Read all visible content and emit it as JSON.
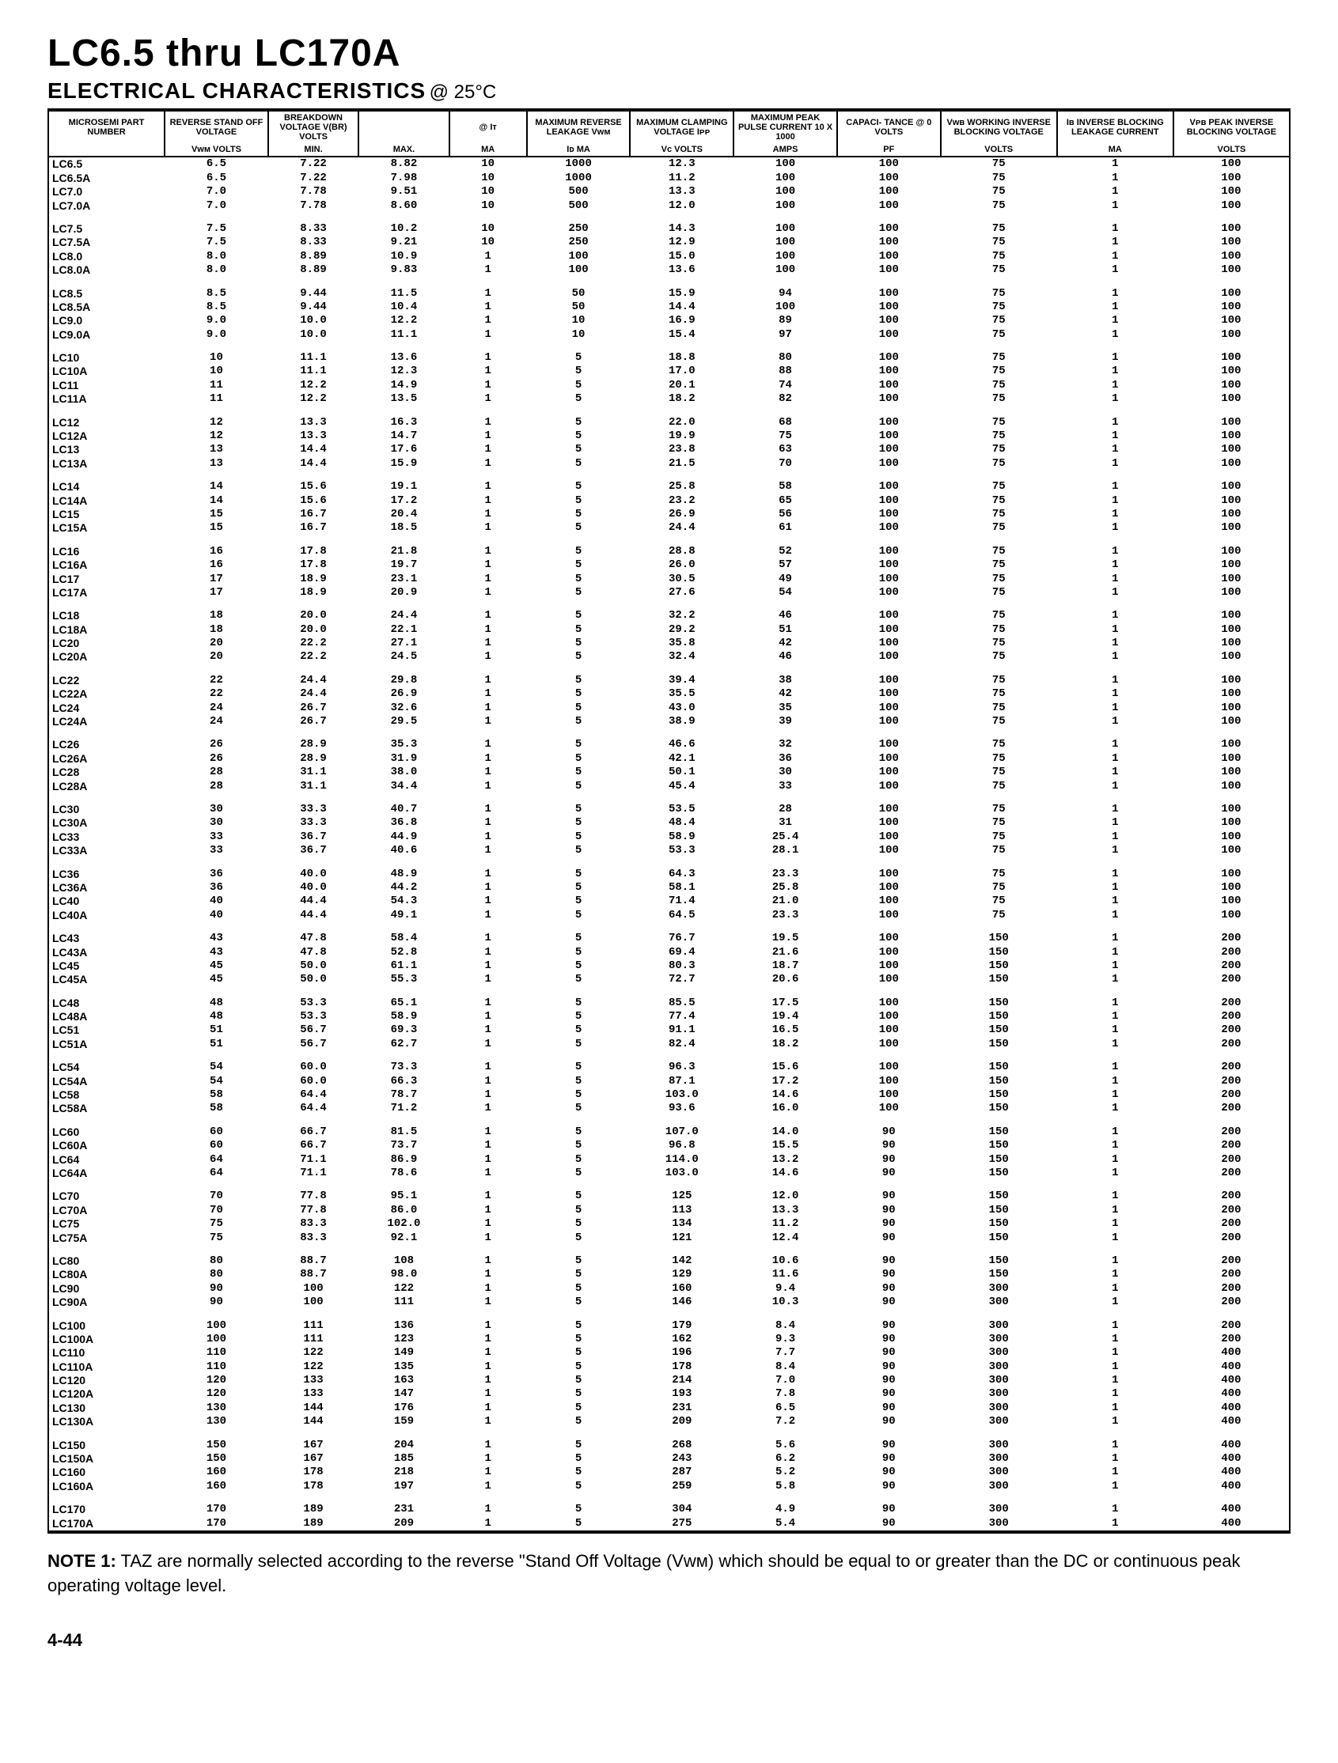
{
  "title": "LC6.5 thru LC170A",
  "subtitle": "ELECTRICAL CHARACTERISTICS",
  "subtitle_cond": "@ 25°C",
  "note_label": "NOTE 1:",
  "note_text": "TAZ are normally selected according to the reverse \"Stand Off Voltage (Vᴡᴍ) which should be equal to or greater than the DC or continuous peak operating voltage level.",
  "page_number": "4-44",
  "columns": [
    {
      "h1": "MICROSEMI PART NUMBER",
      "h2": ""
    },
    {
      "h1": "REVERSE STAND OFF VOLTAGE",
      "h2": "Vᴡᴍ VOLTS"
    },
    {
      "h1": "BREAKDOWN VOLTAGE V(BR) VOLTS",
      "h2": "Min."
    },
    {
      "h1": "",
      "h2": "Max."
    },
    {
      "h1": "@ Iᴛ",
      "h2": "mA"
    },
    {
      "h1": "MAXIMUM REVERSE LEAKAGE Vᴡᴍ",
      "h2": "Iᴅ µA"
    },
    {
      "h1": "MAXIMUM CLAMPING VOLTAGE Iᴘᴘ",
      "h2": "Vᴄ VOLTS"
    },
    {
      "h1": "MAXIMUM PEAK PULSE CURRENT 10 x 1000",
      "h2": "AMPS"
    },
    {
      "h1": "CAPACI- TANCE @ 0 VOLTS",
      "h2": "pF"
    },
    {
      "h1": "Vᴡʙ WORKING INVERSE BLOCKING VOLTAGE",
      "h2": "VOLTS"
    },
    {
      "h1": "Iʙ INVERSE BLOCKING LEAKAGE CURRENT",
      "h2": "mA"
    },
    {
      "h1": "Vᴘʙ PEAK INVERSE BLOCKING VOLTAGE",
      "h2": "VOLTS"
    }
  ],
  "groups": [
    [
      [
        "LC6.5",
        "6.5",
        "7.22",
        "8.82",
        "10",
        "1000",
        "12.3",
        "100",
        "100",
        "75",
        "1",
        "100"
      ],
      [
        "LC6.5A",
        "6.5",
        "7.22",
        "7.98",
        "10",
        "1000",
        "11.2",
        "100",
        "100",
        "75",
        "1",
        "100"
      ],
      [
        "LC7.0",
        "7.0",
        "7.78",
        "9.51",
        "10",
        "500",
        "13.3",
        "100",
        "100",
        "75",
        "1",
        "100"
      ],
      [
        "LC7.0A",
        "7.0",
        "7.78",
        "8.60",
        "10",
        "500",
        "12.0",
        "100",
        "100",
        "75",
        "1",
        "100"
      ]
    ],
    [
      [
        "LC7.5",
        "7.5",
        "8.33",
        "10.2",
        "10",
        "250",
        "14.3",
        "100",
        "100",
        "75",
        "1",
        "100"
      ],
      [
        "LC7.5A",
        "7.5",
        "8.33",
        "9.21",
        "10",
        "250",
        "12.9",
        "100",
        "100",
        "75",
        "1",
        "100"
      ],
      [
        "LC8.0",
        "8.0",
        "8.89",
        "10.9",
        "1",
        "100",
        "15.0",
        "100",
        "100",
        "75",
        "1",
        "100"
      ],
      [
        "LC8.0A",
        "8.0",
        "8.89",
        "9.83",
        "1",
        "100",
        "13.6",
        "100",
        "100",
        "75",
        "1",
        "100"
      ]
    ],
    [
      [
        "LC8.5",
        "8.5",
        "9.44",
        "11.5",
        "1",
        "50",
        "15.9",
        "94",
        "100",
        "75",
        "1",
        "100"
      ],
      [
        "LC8.5A",
        "8.5",
        "9.44",
        "10.4",
        "1",
        "50",
        "14.4",
        "100",
        "100",
        "75",
        "1",
        "100"
      ],
      [
        "LC9.0",
        "9.0",
        "10.0",
        "12.2",
        "1",
        "10",
        "16.9",
        "89",
        "100",
        "75",
        "1",
        "100"
      ],
      [
        "LC9.0A",
        "9.0",
        "10.0",
        "11.1",
        "1",
        "10",
        "15.4",
        "97",
        "100",
        "75",
        "1",
        "100"
      ]
    ],
    [
      [
        "LC10",
        "10",
        "11.1",
        "13.6",
        "1",
        "5",
        "18.8",
        "80",
        "100",
        "75",
        "1",
        "100"
      ],
      [
        "LC10A",
        "10",
        "11.1",
        "12.3",
        "1",
        "5",
        "17.0",
        "88",
        "100",
        "75",
        "1",
        "100"
      ],
      [
        "LC11",
        "11",
        "12.2",
        "14.9",
        "1",
        "5",
        "20.1",
        "74",
        "100",
        "75",
        "1",
        "100"
      ],
      [
        "LC11A",
        "11",
        "12.2",
        "13.5",
        "1",
        "5",
        "18.2",
        "82",
        "100",
        "75",
        "1",
        "100"
      ]
    ],
    [
      [
        "LC12",
        "12",
        "13.3",
        "16.3",
        "1",
        "5",
        "22.0",
        "68",
        "100",
        "75",
        "1",
        "100"
      ],
      [
        "LC12A",
        "12",
        "13.3",
        "14.7",
        "1",
        "5",
        "19.9",
        "75",
        "100",
        "75",
        "1",
        "100"
      ],
      [
        "LC13",
        "13",
        "14.4",
        "17.6",
        "1",
        "5",
        "23.8",
        "63",
        "100",
        "75",
        "1",
        "100"
      ],
      [
        "LC13A",
        "13",
        "14.4",
        "15.9",
        "1",
        "5",
        "21.5",
        "70",
        "100",
        "75",
        "1",
        "100"
      ]
    ],
    [
      [
        "LC14",
        "14",
        "15.6",
        "19.1",
        "1",
        "5",
        "25.8",
        "58",
        "100",
        "75",
        "1",
        "100"
      ],
      [
        "LC14A",
        "14",
        "15.6",
        "17.2",
        "1",
        "5",
        "23.2",
        "65",
        "100",
        "75",
        "1",
        "100"
      ],
      [
        "LC15",
        "15",
        "16.7",
        "20.4",
        "1",
        "5",
        "26.9",
        "56",
        "100",
        "75",
        "1",
        "100"
      ],
      [
        "LC15A",
        "15",
        "16.7",
        "18.5",
        "1",
        "5",
        "24.4",
        "61",
        "100",
        "75",
        "1",
        "100"
      ]
    ],
    [
      [
        "LC16",
        "16",
        "17.8",
        "21.8",
        "1",
        "5",
        "28.8",
        "52",
        "100",
        "75",
        "1",
        "100"
      ],
      [
        "LC16A",
        "16",
        "17.8",
        "19.7",
        "1",
        "5",
        "26.0",
        "57",
        "100",
        "75",
        "1",
        "100"
      ],
      [
        "LC17",
        "17",
        "18.9",
        "23.1",
        "1",
        "5",
        "30.5",
        "49",
        "100",
        "75",
        "1",
        "100"
      ],
      [
        "LC17A",
        "17",
        "18.9",
        "20.9",
        "1",
        "5",
        "27.6",
        "54",
        "100",
        "75",
        "1",
        "100"
      ]
    ],
    [
      [
        "LC18",
        "18",
        "20.0",
        "24.4",
        "1",
        "5",
        "32.2",
        "46",
        "100",
        "75",
        "1",
        "100"
      ],
      [
        "LC18A",
        "18",
        "20.0",
        "22.1",
        "1",
        "5",
        "29.2",
        "51",
        "100",
        "75",
        "1",
        "100"
      ],
      [
        "LC20",
        "20",
        "22.2",
        "27.1",
        "1",
        "5",
        "35.8",
        "42",
        "100",
        "75",
        "1",
        "100"
      ],
      [
        "LC20A",
        "20",
        "22.2",
        "24.5",
        "1",
        "5",
        "32.4",
        "46",
        "100",
        "75",
        "1",
        "100"
      ]
    ],
    [
      [
        "LC22",
        "22",
        "24.4",
        "29.8",
        "1",
        "5",
        "39.4",
        "38",
        "100",
        "75",
        "1",
        "100"
      ],
      [
        "LC22A",
        "22",
        "24.4",
        "26.9",
        "1",
        "5",
        "35.5",
        "42",
        "100",
        "75",
        "1",
        "100"
      ],
      [
        "LC24",
        "24",
        "26.7",
        "32.6",
        "1",
        "5",
        "43.0",
        "35",
        "100",
        "75",
        "1",
        "100"
      ],
      [
        "LC24A",
        "24",
        "26.7",
        "29.5",
        "1",
        "5",
        "38.9",
        "39",
        "100",
        "75",
        "1",
        "100"
      ]
    ],
    [
      [
        "LC26",
        "26",
        "28.9",
        "35.3",
        "1",
        "5",
        "46.6",
        "32",
        "100",
        "75",
        "1",
        "100"
      ],
      [
        "LC26A",
        "26",
        "28.9",
        "31.9",
        "1",
        "5",
        "42.1",
        "36",
        "100",
        "75",
        "1",
        "100"
      ],
      [
        "LC28",
        "28",
        "31.1",
        "38.0",
        "1",
        "5",
        "50.1",
        "30",
        "100",
        "75",
        "1",
        "100"
      ],
      [
        "LC28A",
        "28",
        "31.1",
        "34.4",
        "1",
        "5",
        "45.4",
        "33",
        "100",
        "75",
        "1",
        "100"
      ]
    ],
    [
      [
        "LC30",
        "30",
        "33.3",
        "40.7",
        "1",
        "5",
        "53.5",
        "28",
        "100",
        "75",
        "1",
        "100"
      ],
      [
        "LC30A",
        "30",
        "33.3",
        "36.8",
        "1",
        "5",
        "48.4",
        "31",
        "100",
        "75",
        "1",
        "100"
      ],
      [
        "LC33",
        "33",
        "36.7",
        "44.9",
        "1",
        "5",
        "58.9",
        "25.4",
        "100",
        "75",
        "1",
        "100"
      ],
      [
        "LC33A",
        "33",
        "36.7",
        "40.6",
        "1",
        "5",
        "53.3",
        "28.1",
        "100",
        "75",
        "1",
        "100"
      ]
    ],
    [
      [
        "LC36",
        "36",
        "40.0",
        "48.9",
        "1",
        "5",
        "64.3",
        "23.3",
        "100",
        "75",
        "1",
        "100"
      ],
      [
        "LC36A",
        "36",
        "40.0",
        "44.2",
        "1",
        "5",
        "58.1",
        "25.8",
        "100",
        "75",
        "1",
        "100"
      ],
      [
        "LC40",
        "40",
        "44.4",
        "54.3",
        "1",
        "5",
        "71.4",
        "21.0",
        "100",
        "75",
        "1",
        "100"
      ],
      [
        "LC40A",
        "40",
        "44.4",
        "49.1",
        "1",
        "5",
        "64.5",
        "23.3",
        "100",
        "75",
        "1",
        "100"
      ]
    ],
    [
      [
        "LC43",
        "43",
        "47.8",
        "58.4",
        "1",
        "5",
        "76.7",
        "19.5",
        "100",
        "150",
        "1",
        "200"
      ],
      [
        "LC43A",
        "43",
        "47.8",
        "52.8",
        "1",
        "5",
        "69.4",
        "21.6",
        "100",
        "150",
        "1",
        "200"
      ],
      [
        "LC45",
        "45",
        "50.0",
        "61.1",
        "1",
        "5",
        "80.3",
        "18.7",
        "100",
        "150",
        "1",
        "200"
      ],
      [
        "LC45A",
        "45",
        "50.0",
        "55.3",
        "1",
        "5",
        "72.7",
        "20.6",
        "100",
        "150",
        "1",
        "200"
      ]
    ],
    [
      [
        "LC48",
        "48",
        "53.3",
        "65.1",
        "1",
        "5",
        "85.5",
        "17.5",
        "100",
        "150",
        "1",
        "200"
      ],
      [
        "LC48A",
        "48",
        "53.3",
        "58.9",
        "1",
        "5",
        "77.4",
        "19.4",
        "100",
        "150",
        "1",
        "200"
      ],
      [
        "LC51",
        "51",
        "56.7",
        "69.3",
        "1",
        "5",
        "91.1",
        "16.5",
        "100",
        "150",
        "1",
        "200"
      ],
      [
        "LC51A",
        "51",
        "56.7",
        "62.7",
        "1",
        "5",
        "82.4",
        "18.2",
        "100",
        "150",
        "1",
        "200"
      ]
    ],
    [
      [
        "LC54",
        "54",
        "60.0",
        "73.3",
        "1",
        "5",
        "96.3",
        "15.6",
        "100",
        "150",
        "1",
        "200"
      ],
      [
        "LC54A",
        "54",
        "60.0",
        "66.3",
        "1",
        "5",
        "87.1",
        "17.2",
        "100",
        "150",
        "1",
        "200"
      ],
      [
        "LC58",
        "58",
        "64.4",
        "78.7",
        "1",
        "5",
        "103.0",
        "14.6",
        "100",
        "150",
        "1",
        "200"
      ],
      [
        "LC58A",
        "58",
        "64.4",
        "71.2",
        "1",
        "5",
        "93.6",
        "16.0",
        "100",
        "150",
        "1",
        "200"
      ]
    ],
    [
      [
        "LC60",
        "60",
        "66.7",
        "81.5",
        "1",
        "5",
        "107.0",
        "14.0",
        "90",
        "150",
        "1",
        "200"
      ],
      [
        "LC60A",
        "60",
        "66.7",
        "73.7",
        "1",
        "5",
        "96.8",
        "15.5",
        "90",
        "150",
        "1",
        "200"
      ],
      [
        "LC64",
        "64",
        "71.1",
        "86.9",
        "1",
        "5",
        "114.0",
        "13.2",
        "90",
        "150",
        "1",
        "200"
      ],
      [
        "LC64A",
        "64",
        "71.1",
        "78.6",
        "1",
        "5",
        "103.0",
        "14.6",
        "90",
        "150",
        "1",
        "200"
      ]
    ],
    [
      [
        "LC70",
        "70",
        "77.8",
        "95.1",
        "1",
        "5",
        "125",
        "12.0",
        "90",
        "150",
        "1",
        "200"
      ],
      [
        "LC70A",
        "70",
        "77.8",
        "86.0",
        "1",
        "5",
        "113",
        "13.3",
        "90",
        "150",
        "1",
        "200"
      ],
      [
        "LC75",
        "75",
        "83.3",
        "102.0",
        "1",
        "5",
        "134",
        "11.2",
        "90",
        "150",
        "1",
        "200"
      ],
      [
        "LC75A",
        "75",
        "83.3",
        "92.1",
        "1",
        "5",
        "121",
        "12.4",
        "90",
        "150",
        "1",
        "200"
      ]
    ],
    [
      [
        "LC80",
        "80",
        "88.7",
        "108",
        "1",
        "5",
        "142",
        "10.6",
        "90",
        "150",
        "1",
        "200"
      ],
      [
        "LC80A",
        "80",
        "88.7",
        "98.0",
        "1",
        "5",
        "129",
        "11.6",
        "90",
        "150",
        "1",
        "200"
      ],
      [
        "LC90",
        "90",
        "100",
        "122",
        "1",
        "5",
        "160",
        "9.4",
        "90",
        "300",
        "1",
        "200"
      ],
      [
        "LC90A",
        "90",
        "100",
        "111",
        "1",
        "5",
        "146",
        "10.3",
        "90",
        "300",
        "1",
        "200"
      ]
    ],
    [
      [
        "LC100",
        "100",
        "111",
        "136",
        "1",
        "5",
        "179",
        "8.4",
        "90",
        "300",
        "1",
        "200"
      ],
      [
        "LC100A",
        "100",
        "111",
        "123",
        "1",
        "5",
        "162",
        "9.3",
        "90",
        "300",
        "1",
        "200"
      ],
      [
        "LC110",
        "110",
        "122",
        "149",
        "1",
        "5",
        "196",
        "7.7",
        "90",
        "300",
        "1",
        "400"
      ],
      [
        "LC110A",
        "110",
        "122",
        "135",
        "1",
        "5",
        "178",
        "8.4",
        "90",
        "300",
        "1",
        "400"
      ],
      [
        "LC120",
        "120",
        "133",
        "163",
        "1",
        "5",
        "214",
        "7.0",
        "90",
        "300",
        "1",
        "400"
      ],
      [
        "LC120A",
        "120",
        "133",
        "147",
        "1",
        "5",
        "193",
        "7.8",
        "90",
        "300",
        "1",
        "400"
      ],
      [
        "LC130",
        "130",
        "144",
        "176",
        "1",
        "5",
        "231",
        "6.5",
        "90",
        "300",
        "1",
        "400"
      ],
      [
        "LC130A",
        "130",
        "144",
        "159",
        "1",
        "5",
        "209",
        "7.2",
        "90",
        "300",
        "1",
        "400"
      ]
    ],
    [
      [
        "LC150",
        "150",
        "167",
        "204",
        "1",
        "5",
        "268",
        "5.6",
        "90",
        "300",
        "1",
        "400"
      ],
      [
        "LC150A",
        "150",
        "167",
        "185",
        "1",
        "5",
        "243",
        "6.2",
        "90",
        "300",
        "1",
        "400"
      ],
      [
        "LC160",
        "160",
        "178",
        "218",
        "1",
        "5",
        "287",
        "5.2",
        "90",
        "300",
        "1",
        "400"
      ],
      [
        "LC160A",
        "160",
        "178",
        "197",
        "1",
        "5",
        "259",
        "5.8",
        "90",
        "300",
        "1",
        "400"
      ]
    ],
    [
      [
        "LC170",
        "170",
        "189",
        "231",
        "1",
        "5",
        "304",
        "4.9",
        "90",
        "300",
        "1",
        "400"
      ],
      [
        "LC170A",
        "170",
        "189",
        "209",
        "1",
        "5",
        "275",
        "5.4",
        "90",
        "300",
        "1",
        "400"
      ]
    ]
  ]
}
